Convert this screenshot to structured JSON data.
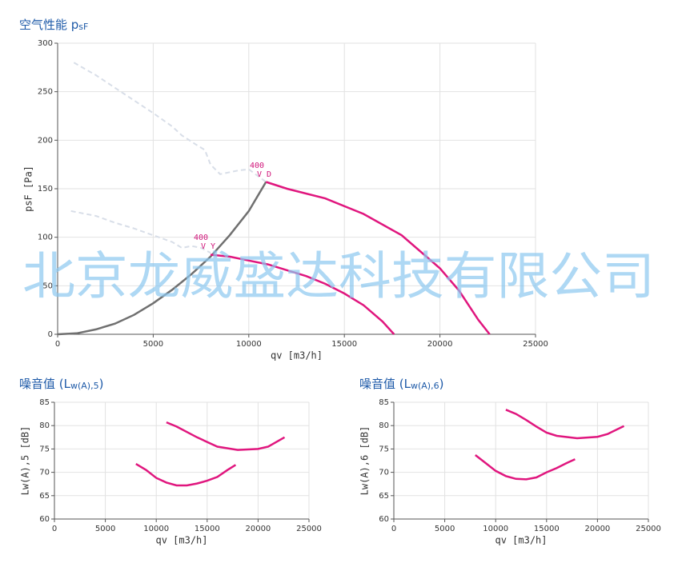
{
  "watermark": "北京龙威盛达科技有限公司",
  "chart_data": [
    {
      "type": "line",
      "title": [
        "空气性能 p",
        "sF"
      ],
      "x_label": "qv [m3/h]",
      "y_label": "psF [Pa]",
      "xlim": [
        0,
        25000
      ],
      "xticks": [
        0,
        5000,
        10000,
        15000,
        20000,
        25000
      ],
      "ylim": [
        0,
        300
      ],
      "yticks": [
        0,
        50,
        100,
        150,
        200,
        250,
        300
      ],
      "grid": true,
      "annotations": [
        "400",
        "V D",
        "400",
        "V Y"
      ],
      "series": [
        {
          "color": "#d8dee8",
          "dashed": true,
          "x": [
            850,
            2000,
            3000,
            4000,
            5000,
            6000,
            6500,
            7200,
            7700,
            8000,
            8500,
            9500,
            10000,
            10900
          ],
          "values": [
            280,
            267,
            254,
            241,
            228,
            214,
            205,
            196,
            190,
            175,
            165,
            169,
            170,
            157
          ]
        },
        {
          "color": "#d8dee8",
          "dashed": true,
          "x": [
            700,
            2000,
            3000,
            4000,
            5000,
            6000,
            6500,
            7000,
            7500,
            8000
          ],
          "values": [
            127,
            122,
            115,
            109,
            102,
            95,
            89,
            91,
            89,
            84
          ]
        },
        {
          "color": "#707070",
          "dashed": false,
          "x": [
            0,
            1000,
            2000,
            3000,
            4000,
            5000,
            6000,
            7000,
            8000,
            9000,
            10000,
            10900
          ],
          "values": [
            0,
            1,
            5,
            11,
            20,
            32,
            46,
            62,
            80,
            102,
            127,
            157
          ]
        },
        {
          "color": "#e0167e",
          "dashed": false,
          "x": [
            10900,
            12000,
            14000,
            16000,
            18000,
            20000,
            21000,
            22000,
            22600
          ],
          "values": [
            157,
            150,
            140,
            124,
            102,
            68,
            45,
            15,
            0
          ]
        },
        {
          "color": "#e0167e",
          "dashed": false,
          "x": [
            8000,
            9000,
            10000,
            11000,
            12000,
            13000,
            14000,
            15000,
            16000,
            17000,
            17600
          ],
          "values": [
            82,
            80,
            76,
            72,
            66,
            60,
            52,
            42,
            30,
            13,
            0
          ]
        }
      ]
    },
    {
      "type": "line",
      "title": [
        "噪音值 (L",
        "w(A),5",
        ")"
      ],
      "x_label": "qv [m3/h]",
      "y_label": "Lw(A),5 [dB]",
      "xlim": [
        0,
        25000
      ],
      "xticks": [
        0,
        5000,
        10000,
        15000,
        20000,
        25000
      ],
      "ylim": [
        60,
        85
      ],
      "yticks": [
        60,
        65,
        70,
        75,
        80,
        85
      ],
      "grid": true,
      "series": [
        {
          "color": "#e0167e",
          "dashed": false,
          "x": [
            11000,
            12000,
            14000,
            16000,
            18000,
            20000,
            21000,
            22600
          ],
          "values": [
            80.7,
            79.8,
            77.5,
            75.5,
            74.8,
            75,
            75.5,
            77.5
          ]
        },
        {
          "color": "#e0167e",
          "dashed": false,
          "x": [
            8000,
            9000,
            10000,
            11000,
            12000,
            13000,
            14000,
            15000,
            16000,
            17000,
            17800
          ],
          "values": [
            71.8,
            70.5,
            68.8,
            67.8,
            67.2,
            67.2,
            67.6,
            68.2,
            69,
            70.5,
            71.6
          ]
        }
      ]
    },
    {
      "type": "line",
      "title": [
        "噪音值 (L",
        "w(A),6",
        ")"
      ],
      "x_label": "qv [m3/h]",
      "y_label": "Lw(A),6 [dB]",
      "xlim": [
        0,
        25000
      ],
      "xticks": [
        0,
        5000,
        10000,
        15000,
        20000,
        25000
      ],
      "ylim": [
        60,
        85
      ],
      "yticks": [
        60,
        65,
        70,
        75,
        80,
        85
      ],
      "grid": true,
      "series": [
        {
          "color": "#e0167e",
          "dashed": false,
          "x": [
            11000,
            12000,
            13000,
            14000,
            15000,
            16000,
            18000,
            20000,
            21000,
            22600
          ],
          "values": [
            83.4,
            82.5,
            81.2,
            79.8,
            78.5,
            77.8,
            77.3,
            77.6,
            78.2,
            79.9
          ]
        },
        {
          "color": "#e0167e",
          "dashed": false,
          "x": [
            8000,
            9000,
            10000,
            11000,
            12000,
            13000,
            14000,
            15000,
            16000,
            17000,
            17800
          ],
          "values": [
            73.7,
            72,
            70.3,
            69.2,
            68.6,
            68.5,
            68.9,
            70,
            70.9,
            72,
            72.8
          ]
        }
      ]
    }
  ]
}
